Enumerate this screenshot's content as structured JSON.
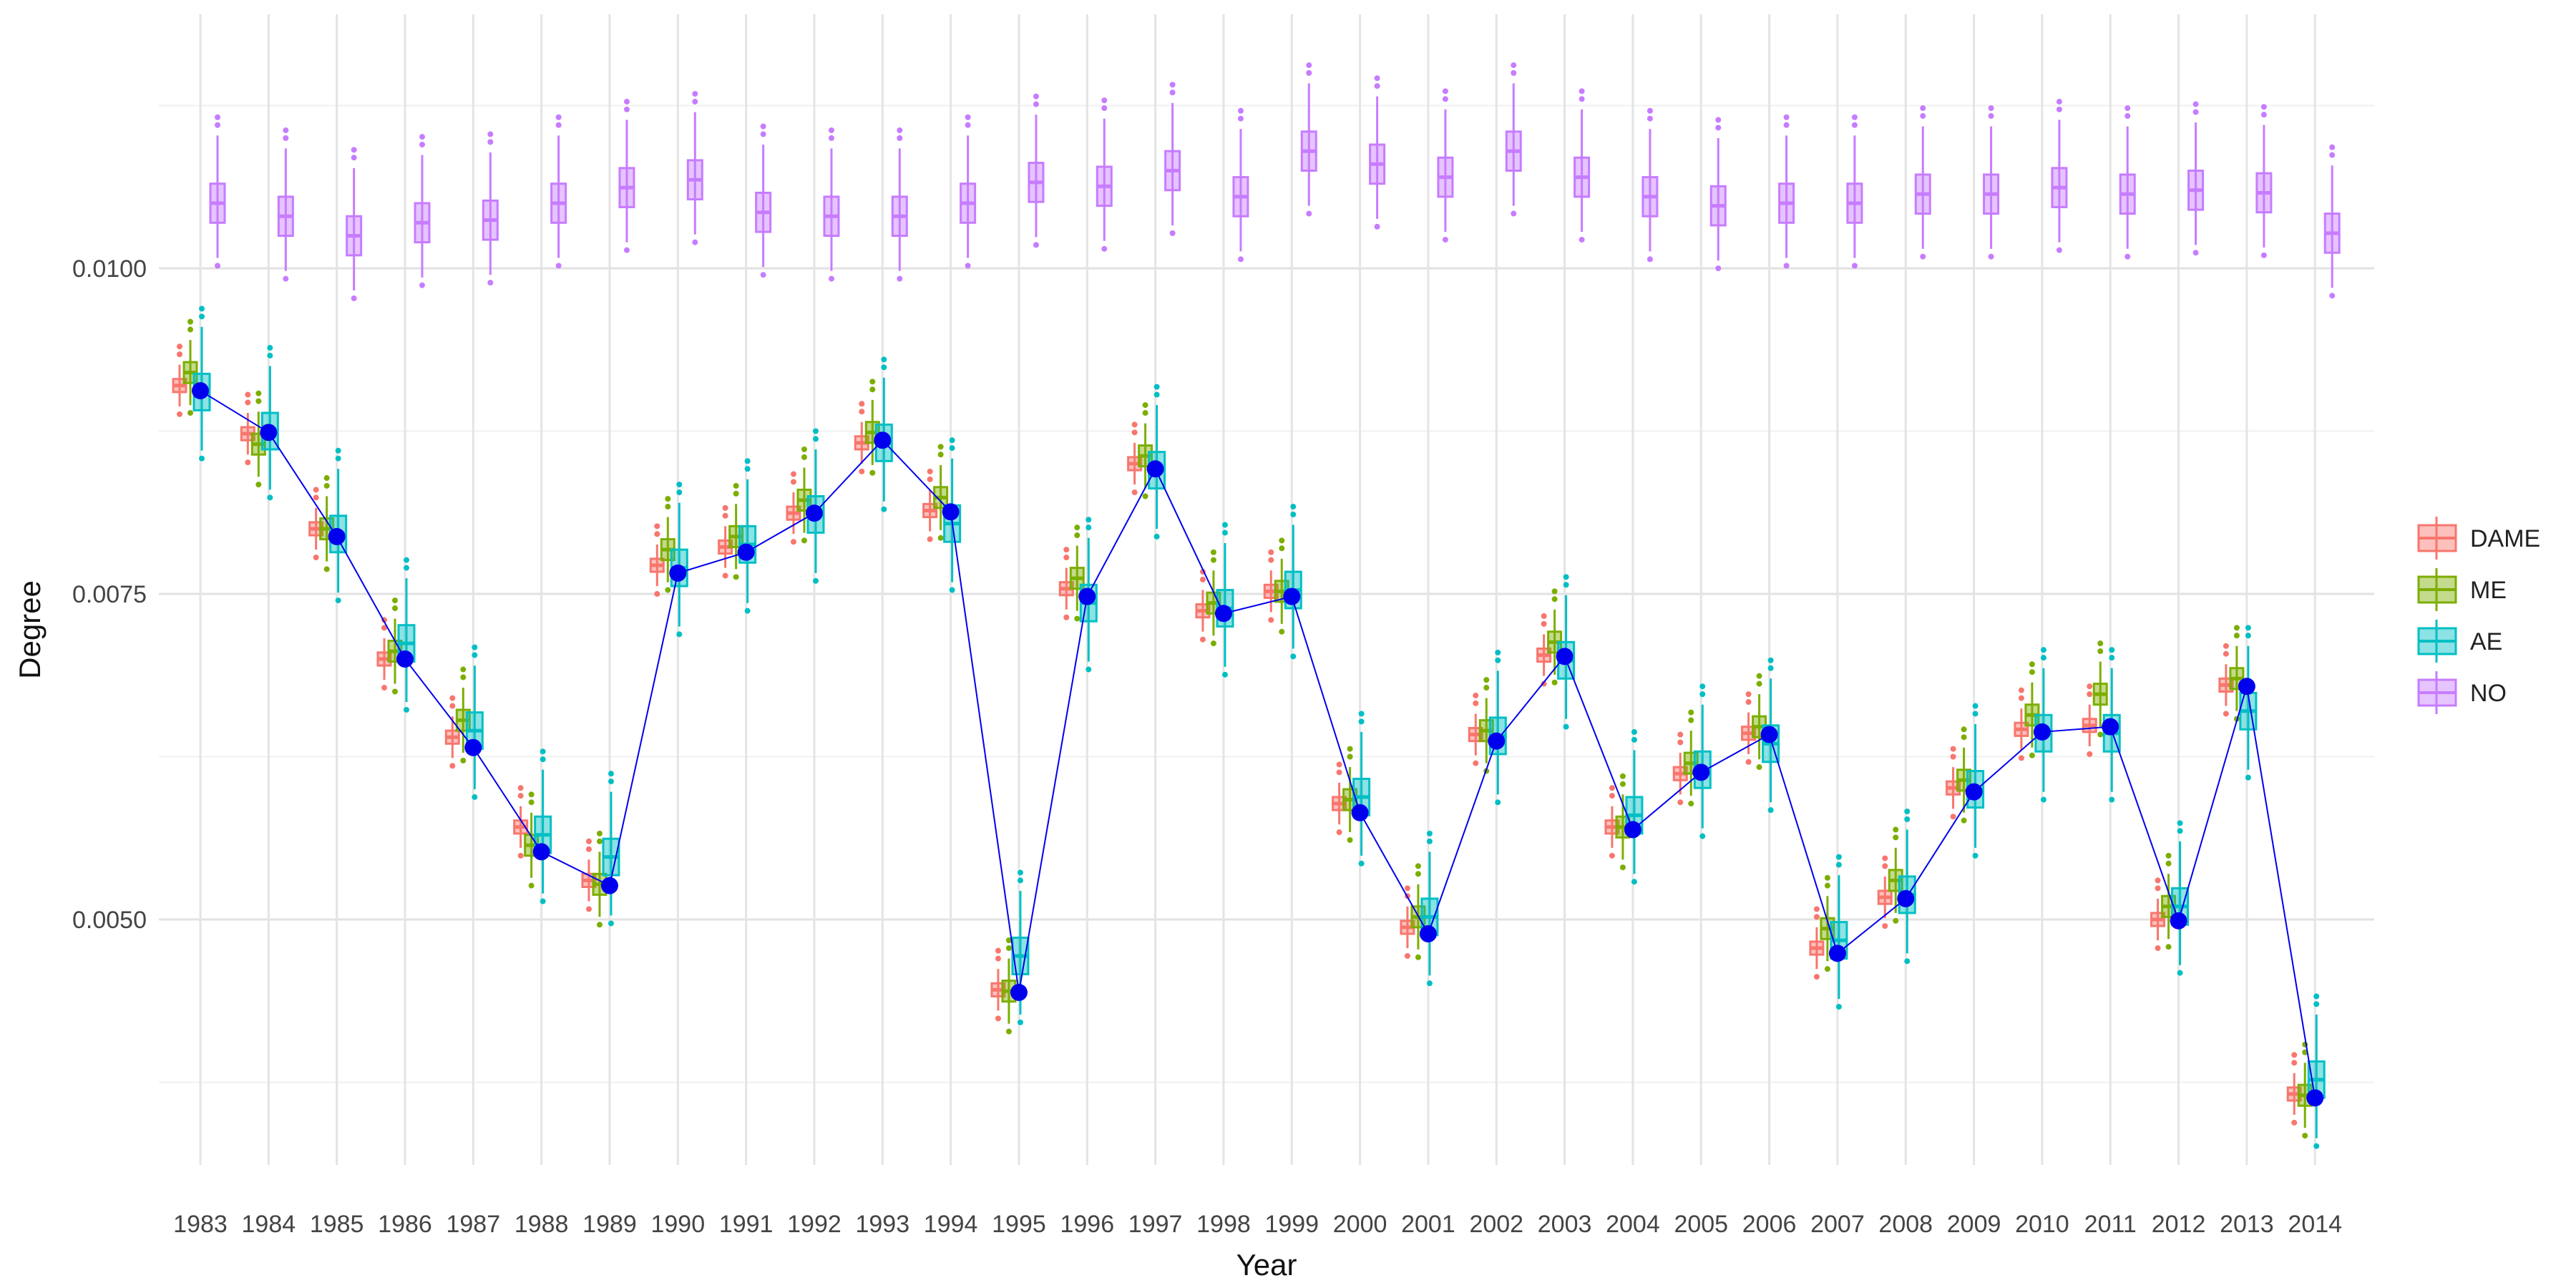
{
  "chart_data": {
    "type": "box",
    "title": "",
    "xlabel": "Year",
    "ylabel": "Degree",
    "ylim": [
      0.0031,
      0.012
    ],
    "yticks": [
      "0.0050",
      "0.0075",
      "0.0100"
    ],
    "ytick_values": [
      0.005,
      0.0075,
      0.01
    ],
    "grid": true,
    "legend_position": "right",
    "years": [
      "1983",
      "1984",
      "1985",
      "1986",
      "1987",
      "1988",
      "1989",
      "1990",
      "1991",
      "1992",
      "1993",
      "1994",
      "1995",
      "1996",
      "1997",
      "1998",
      "1999",
      "2000",
      "2001",
      "2002",
      "2003",
      "2004",
      "2005",
      "2006",
      "2007",
      "2008",
      "2009",
      "2010",
      "2011",
      "2012",
      "2013",
      "2014"
    ],
    "series": [
      {
        "name": "DAME",
        "color": "#F8766D",
        "medians": [
          0.0091,
          0.00873,
          0.008,
          0.007,
          0.0064,
          0.00571,
          0.0053,
          0.00772,
          0.00786,
          0.00812,
          0.00866,
          0.00814,
          0.00446,
          0.00754,
          0.0085,
          0.00737,
          0.00752,
          0.00589,
          0.00494,
          0.00642,
          0.00703,
          0.00571,
          0.00612,
          0.00643,
          0.00478,
          0.00517,
          0.00601,
          0.00646,
          0.00649,
          0.005,
          0.0068,
          0.00366
        ]
      },
      {
        "name": "ME",
        "color": "#7CAE00",
        "medians": [
          0.0092,
          0.00865,
          0.008,
          0.00706,
          0.00653,
          0.00557,
          0.00527,
          0.00784,
          0.00794,
          0.00822,
          0.00874,
          0.00824,
          0.00445,
          0.00762,
          0.00856,
          0.00743,
          0.00752,
          0.00592,
          0.00502,
          0.00645,
          0.00713,
          0.00571,
          0.0062,
          0.00648,
          0.00493,
          0.0053,
          0.00607,
          0.00657,
          0.00673,
          0.0051,
          0.00685,
          0.00365
        ]
      },
      {
        "name": "AE",
        "color": "#00BFC4",
        "medians": [
          0.00905,
          0.00875,
          0.00796,
          0.00712,
          0.00645,
          0.00565,
          0.00548,
          0.0077,
          0.00788,
          0.00811,
          0.00866,
          0.00804,
          0.00472,
          0.00743,
          0.00845,
          0.00739,
          0.00753,
          0.00594,
          0.00502,
          0.00641,
          0.00699,
          0.0058,
          0.00615,
          0.00635,
          0.00484,
          0.00519,
          0.006,
          0.00643,
          0.00643,
          0.0051,
          0.0066,
          0.00377
        ]
      },
      {
        "name": "NO",
        "color": "#C77CFF",
        "medians": [
          0.0105,
          0.0104,
          0.01025,
          0.01035,
          0.01037,
          0.0105,
          0.01062,
          0.01068,
          0.01043,
          0.0104,
          0.0104,
          0.0105,
          0.01066,
          0.01063,
          0.01075,
          0.01055,
          0.0109,
          0.0108,
          0.0107,
          0.0109,
          0.0107,
          0.01055,
          0.01048,
          0.0105,
          0.0105,
          0.01057,
          0.01057,
          0.01062,
          0.01057,
          0.0106,
          0.01058,
          0.01027
        ]
      }
    ],
    "mean_line": {
      "color": "#0000EE",
      "values": [
        0.00906,
        0.00874,
        0.00794,
        0.007,
        0.00632,
        0.00552,
        0.00526,
        0.00766,
        0.00782,
        0.00812,
        0.00868,
        0.00813,
        0.00444,
        0.00748,
        0.00846,
        0.00735,
        0.00748,
        0.00582,
        0.00489,
        0.00637,
        0.00702,
        0.00569,
        0.00613,
        0.00642,
        0.00474,
        0.00516,
        0.00598,
        0.00644,
        0.00648,
        0.00499,
        0.00679,
        0.00363
      ]
    }
  }
}
